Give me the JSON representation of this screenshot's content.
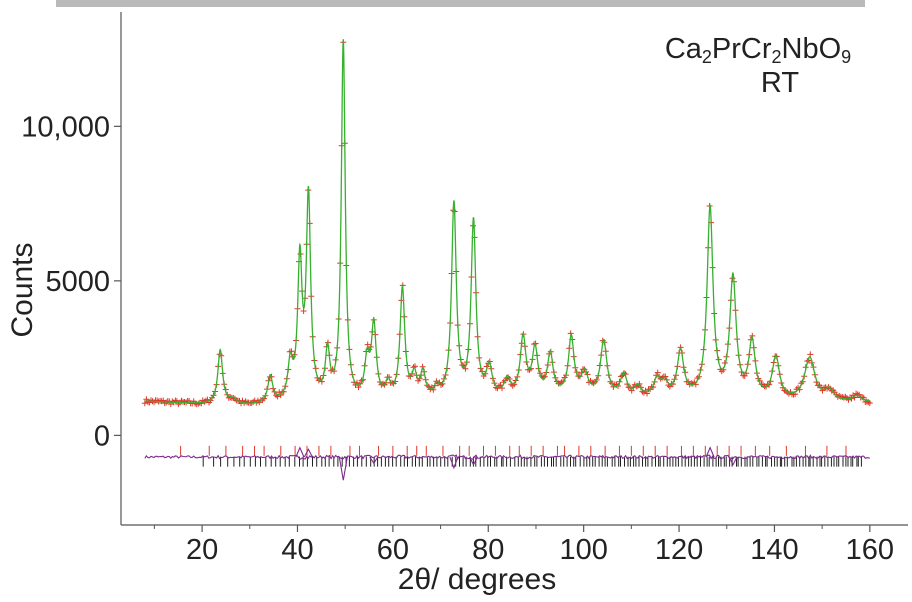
{
  "chart_data": {
    "type": "scatter",
    "xlabel": "2θ/ degrees",
    "ylabel": "Counts",
    "xlim": [
      3,
      168
    ],
    "ylim": [
      -2900,
      13700
    ],
    "x_ticks": [
      20,
      40,
      60,
      80,
      100,
      120,
      140,
      160
    ],
    "x_tick_labels": [
      "20",
      "40",
      "60",
      "80",
      "100",
      "120",
      "140",
      "160"
    ],
    "y_ticks": [
      0,
      5000,
      10000
    ],
    "y_tick_labels": [
      "0",
      "5000",
      "10,000"
    ],
    "annotation": {
      "formula_parts": [
        {
          "text": "Ca",
          "sub": false
        },
        {
          "text": "2",
          "sub": true
        },
        {
          "text": "PrCr",
          "sub": false
        },
        {
          "text": "2",
          "sub": true
        },
        {
          "text": "NbO",
          "sub": false
        },
        {
          "text": "9",
          "sub": true
        }
      ],
      "condition": "RT"
    },
    "x_range": [
      8,
      160
    ],
    "background": [
      [
        8,
        1100
      ],
      [
        20,
        1000
      ],
      [
        30,
        950
      ],
      [
        40,
        1050
      ],
      [
        50,
        1050
      ],
      [
        60,
        1100
      ],
      [
        70,
        1150
      ],
      [
        80,
        1200
      ],
      [
        90,
        1250
      ],
      [
        100,
        1250
      ],
      [
        110,
        1200
      ],
      [
        120,
        1200
      ],
      [
        130,
        1150
      ],
      [
        140,
        1100
      ],
      [
        150,
        1050
      ],
      [
        160,
        1050
      ]
    ],
    "peaks": [
      {
        "x": 23.8,
        "h": 1750,
        "w": 0.6
      },
      {
        "x": 26.5,
        "h": 150,
        "w": 1.0
      },
      {
        "x": 34.3,
        "h": 850,
        "w": 0.6
      },
      {
        "x": 38.5,
        "h": 1150,
        "w": 0.6
      },
      {
        "x": 40.5,
        "h": 4400,
        "w": 0.55
      },
      {
        "x": 42.3,
        "h": 6500,
        "w": 0.55
      },
      {
        "x": 46.3,
        "h": 1500,
        "w": 0.55
      },
      {
        "x": 49.6,
        "h": 11600,
        "w": 0.5
      },
      {
        "x": 54.6,
        "h": 1200,
        "w": 0.6
      },
      {
        "x": 56.0,
        "h": 2350,
        "w": 0.6
      },
      {
        "x": 59.0,
        "h": 450,
        "w": 0.6
      },
      {
        "x": 62.0,
        "h": 3550,
        "w": 0.6
      },
      {
        "x": 64.5,
        "h": 700,
        "w": 0.6
      },
      {
        "x": 66.3,
        "h": 800,
        "w": 0.6
      },
      {
        "x": 69.2,
        "h": 300,
        "w": 0.6
      },
      {
        "x": 72.8,
        "h": 6250,
        "w": 0.6
      },
      {
        "x": 76.9,
        "h": 5650,
        "w": 0.6
      },
      {
        "x": 80.2,
        "h": 900,
        "w": 0.7
      },
      {
        "x": 84.0,
        "h": 500,
        "w": 0.7
      },
      {
        "x": 87.3,
        "h": 1850,
        "w": 0.7
      },
      {
        "x": 89.8,
        "h": 1450,
        "w": 0.7
      },
      {
        "x": 93.0,
        "h": 1300,
        "w": 0.7
      },
      {
        "x": 97.4,
        "h": 1850,
        "w": 0.7
      },
      {
        "x": 100.2,
        "h": 700,
        "w": 0.8
      },
      {
        "x": 104.2,
        "h": 1750,
        "w": 0.8
      },
      {
        "x": 108.4,
        "h": 700,
        "w": 0.8
      },
      {
        "x": 111.3,
        "h": 300,
        "w": 0.8
      },
      {
        "x": 115.4,
        "h": 550,
        "w": 0.8
      },
      {
        "x": 117.0,
        "h": 400,
        "w": 0.8
      },
      {
        "x": 120.3,
        "h": 1450,
        "w": 0.8
      },
      {
        "x": 126.5,
        "h": 6100,
        "w": 0.75
      },
      {
        "x": 131.3,
        "h": 3850,
        "w": 0.8
      },
      {
        "x": 135.3,
        "h": 1800,
        "w": 0.8
      },
      {
        "x": 140.3,
        "h": 1350,
        "w": 0.9
      },
      {
        "x": 147.4,
        "h": 1400,
        "w": 1.3
      },
      {
        "x": 151.5,
        "h": 350,
        "w": 1.1
      },
      {
        "x": 157.3,
        "h": 200,
        "w": 1.1
      }
    ],
    "series": [
      {
        "role": "observed",
        "color": "#e0392a",
        "marker": "+"
      },
      {
        "role": "calculated",
        "color": "#36b02e"
      },
      {
        "role": "difference",
        "color": "#7d2a8c",
        "offset": -700
      },
      {
        "role": "reflections-phase-1",
        "color": "#e0392a",
        "y": -500
      },
      {
        "role": "reflections-phase-2",
        "color": "#222222",
        "y": -850
      }
    ],
    "reflections_phase_1": [
      15.5,
      21.5,
      25.0,
      28.5,
      31.0,
      33.0,
      36.5,
      39.5,
      42.0,
      44.5,
      47.0,
      51.0,
      53.0,
      57.0,
      60.0,
      63.0,
      65.0,
      67.0,
      70.5,
      74.0,
      76.0,
      79.0,
      81.5,
      84.5,
      86.5,
      89.0,
      91.5,
      94.5,
      96.0,
      99.0,
      101.5,
      104.5,
      107.5,
      110.0,
      112.5,
      115.0,
      117.5,
      120.5,
      123.0,
      125.5,
      128.0,
      130.5,
      133.0,
      136.0,
      139.0,
      142.5,
      146.5,
      151.0,
      155.0
    ],
    "reflections_phase_2_count": 190,
    "reflections_phase_2_range": [
      20.2,
      158.3
    ],
    "grid": false,
    "colors": {
      "observed": "#e0392a",
      "calculated": "#36b02e",
      "difference": "#7d2a8c",
      "axis": "#555555",
      "top_bar": "#b9b9b9"
    }
  }
}
